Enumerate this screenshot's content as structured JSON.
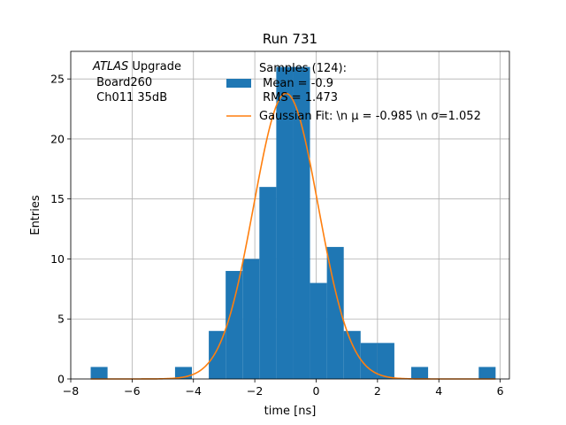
{
  "chart_data": {
    "type": "bar",
    "title": "Run 731",
    "xlabel": "time [ns]",
    "ylabel": "Entries",
    "xlim": [
      -8,
      6.3
    ],
    "ylim": [
      0,
      27.3
    ],
    "x_ticks": [
      -8,
      -6,
      -4,
      -2,
      0,
      2,
      4,
      6
    ],
    "x_tick_labels": [
      "−8",
      "−6",
      "−4",
      "−2",
      "0",
      "2",
      "4",
      "6"
    ],
    "y_ticks": [
      0,
      5,
      10,
      15,
      20,
      25
    ],
    "y_tick_labels": [
      "0",
      "5",
      "10",
      "15",
      "20",
      "25"
    ],
    "grid": true,
    "bin_width": 0.55,
    "bins": [
      {
        "left": -7.35,
        "count": 1
      },
      {
        "left": -6.8,
        "count": 0
      },
      {
        "left": -6.25,
        "count": 0
      },
      {
        "left": -5.7,
        "count": 0
      },
      {
        "left": -5.15,
        "count": 0
      },
      {
        "left": -4.6,
        "count": 1
      },
      {
        "left": -4.05,
        "count": 0
      },
      {
        "left": -3.5,
        "count": 4
      },
      {
        "left": -2.95,
        "count": 9
      },
      {
        "left": -2.4,
        "count": 10
      },
      {
        "left": -1.85,
        "count": 16
      },
      {
        "left": -1.3,
        "count": 26
      },
      {
        "left": -0.75,
        "count": 26
      },
      {
        "left": -0.2,
        "count": 8
      },
      {
        "left": 0.35,
        "count": 11
      },
      {
        "left": 0.9,
        "count": 4
      },
      {
        "left": 1.45,
        "count": 3
      },
      {
        "left": 2.0,
        "count": 3
      },
      {
        "left": 2.55,
        "count": 0
      },
      {
        "left": 3.1,
        "count": 1
      },
      {
        "left": 3.65,
        "count": 0
      },
      {
        "left": 4.2,
        "count": 0
      },
      {
        "left": 4.75,
        "count": 0
      },
      {
        "left": 5.3,
        "count": 1
      }
    ],
    "fit": {
      "type": "gaussian",
      "mu": -0.985,
      "sigma": 1.052,
      "amplitude": 23.8,
      "x_range": [
        -7.35,
        5.85
      ]
    },
    "colors": {
      "bars": "#1f77b4",
      "fit": "#ff7f0e"
    },
    "legend": {
      "placement": "upper-center",
      "entries": [
        {
          "kind": "bar",
          "lines": [
            "Samples (124):",
            " Mean = -0.9",
            " RMS = 1.473"
          ]
        },
        {
          "kind": "line",
          "lines": [
            "Gaussian Fit: \\n μ = -0.985 \\n σ=1.052"
          ]
        }
      ]
    },
    "annotation": {
      "line1_italic": "ATLAS",
      "line1_rest": " Upgrade",
      "line2": " Board260",
      "line3": " Ch011 35dB"
    }
  }
}
